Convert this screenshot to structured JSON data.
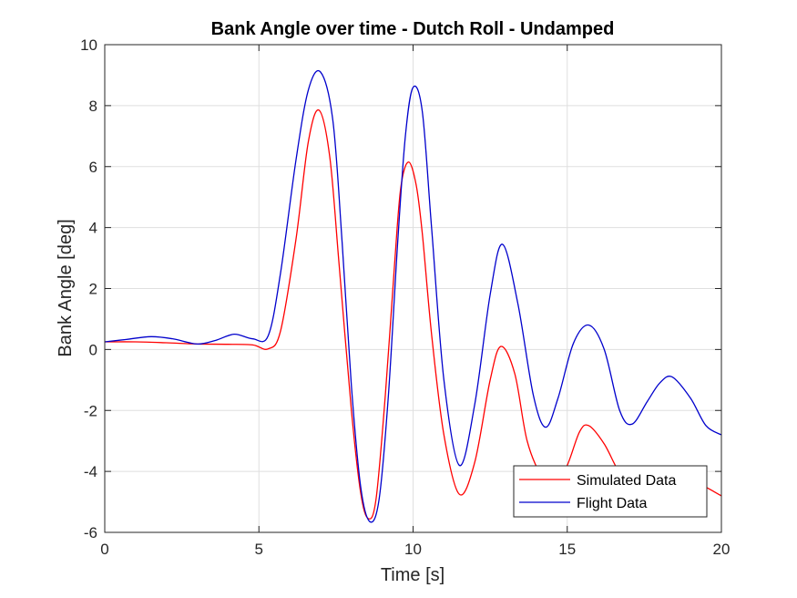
{
  "chart_data": {
    "type": "line",
    "title": "Bank Angle over time - Dutch Roll - Undamped",
    "xlabel": "Time [s]",
    "ylabel": "Bank Angle [deg]",
    "xlim": [
      0,
      20
    ],
    "ylim": [
      -6,
      10
    ],
    "xticks": [
      0,
      5,
      10,
      15,
      20
    ],
    "yticks": [
      -6,
      -4,
      -2,
      0,
      2,
      4,
      6,
      8,
      10
    ],
    "xtick_labels": [
      "0",
      "5",
      "10",
      "15",
      "20"
    ],
    "ytick_labels": [
      "-6",
      "-4",
      "-2",
      "0",
      "2",
      "4",
      "6",
      "8",
      "10"
    ],
    "grid": true,
    "legend_position": "bottom-right",
    "series": [
      {
        "name": "Simulated Data",
        "color": "#ff0000",
        "x": [
          0,
          1,
          2,
          3,
          4,
          4.8,
          5.3,
          5.7,
          6.2,
          6.6,
          6.95,
          7.3,
          7.6,
          8.0,
          8.3,
          8.55,
          8.8,
          9.1,
          9.4,
          9.6,
          9.85,
          10.1,
          10.3,
          10.6,
          11.0,
          11.5,
          12.0,
          12.5,
          12.85,
          13.3,
          13.7,
          14.2,
          14.6,
          15.0,
          15.4,
          15.7,
          16.2,
          16.8,
          17.5,
          18.2,
          19.0,
          20.0
        ],
        "y": [
          0.25,
          0.25,
          0.22,
          0.18,
          0.17,
          0.15,
          0.02,
          0.6,
          3.6,
          6.8,
          7.85,
          6.3,
          2.8,
          -2.0,
          -4.7,
          -5.55,
          -4.9,
          -1.5,
          2.8,
          5.3,
          6.15,
          5.4,
          3.8,
          0.5,
          -2.8,
          -4.75,
          -3.7,
          -1.0,
          0.1,
          -0.8,
          -3.0,
          -4.2,
          -4.4,
          -3.8,
          -2.7,
          -2.5,
          -3.1,
          -4.2,
          -4.6,
          -4.4,
          -4.3,
          -4.8
        ]
      },
      {
        "name": "Flight Data",
        "color": "#0000cc",
        "x": [
          0,
          0.7,
          1.5,
          2.2,
          3.0,
          3.6,
          4.2,
          4.8,
          5.3,
          5.7,
          6.2,
          6.6,
          7.0,
          7.4,
          7.7,
          8.0,
          8.3,
          8.6,
          8.9,
          9.2,
          9.5,
          9.75,
          10.0,
          10.3,
          10.6,
          11.0,
          11.5,
          12.0,
          12.5,
          12.9,
          13.4,
          13.9,
          14.3,
          14.7,
          15.2,
          15.7,
          16.2,
          16.7,
          17.1,
          17.6,
          18.0,
          18.4,
          19.0,
          19.5,
          20.0
        ],
        "y": [
          0.25,
          0.33,
          0.42,
          0.35,
          0.18,
          0.3,
          0.5,
          0.35,
          0.45,
          2.5,
          6.2,
          8.5,
          9.1,
          7.5,
          3.5,
          -1.2,
          -4.5,
          -5.65,
          -4.9,
          -1.5,
          3.5,
          7.0,
          8.6,
          7.8,
          4.0,
          -1.0,
          -3.8,
          -1.8,
          1.8,
          3.45,
          1.5,
          -1.5,
          -2.55,
          -1.6,
          0.2,
          0.8,
          0.0,
          -2.0,
          -2.45,
          -1.7,
          -1.1,
          -0.9,
          -1.6,
          -2.5,
          -2.8
        ]
      }
    ]
  }
}
